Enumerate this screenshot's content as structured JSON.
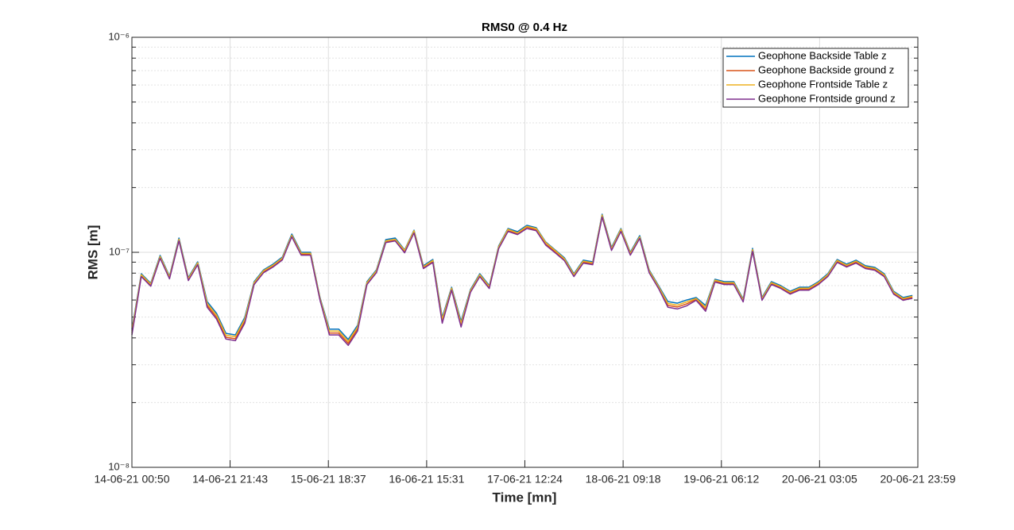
{
  "chart_data": {
    "type": "line",
    "title": "RMS0 @ 0.4 Hz",
    "xlabel": "Time [mn]",
    "ylabel": "RMS [m]",
    "x": [
      "14-06-21 00:50",
      "14-06-21 02:50",
      "14-06-21 04:50",
      "14-06-21 06:50",
      "14-06-21 08:50",
      "14-06-21 10:50",
      "14-06-21 12:50",
      "14-06-21 14:50",
      "14-06-21 16:50",
      "14-06-21 18:50",
      "14-06-21 20:50",
      "14-06-21 22:50",
      "15-06-21 00:50",
      "15-06-21 02:50",
      "15-06-21 04:50",
      "15-06-21 06:50",
      "15-06-21 08:50",
      "15-06-21 10:50",
      "15-06-21 12:50",
      "15-06-21 14:50",
      "15-06-21 16:50",
      "15-06-21 18:50",
      "15-06-21 20:50",
      "15-06-21 22:50",
      "16-06-21 00:50",
      "16-06-21 02:50",
      "16-06-21 04:50",
      "16-06-21 06:50",
      "16-06-21 08:50",
      "16-06-21 10:50",
      "16-06-21 12:50",
      "16-06-21 14:50",
      "16-06-21 16:50",
      "16-06-21 18:50",
      "16-06-21 20:50",
      "16-06-21 22:50",
      "17-06-21 00:50",
      "17-06-21 02:50",
      "17-06-21 04:50",
      "17-06-21 06:50",
      "17-06-21 08:50",
      "17-06-21 10:50",
      "17-06-21 12:50",
      "17-06-21 14:50",
      "17-06-21 16:50",
      "17-06-21 18:50",
      "17-06-21 20:50",
      "17-06-21 22:50",
      "18-06-21 00:50",
      "18-06-21 02:50",
      "18-06-21 04:50",
      "18-06-21 06:50",
      "18-06-21 08:50",
      "18-06-21 10:50",
      "18-06-21 12:50",
      "18-06-21 14:50",
      "18-06-21 16:50",
      "18-06-21 18:50",
      "18-06-21 20:50",
      "18-06-21 22:50",
      "19-06-21 00:50",
      "19-06-21 02:50",
      "19-06-21 04:50",
      "19-06-21 06:50",
      "19-06-21 08:50",
      "19-06-21 10:50",
      "19-06-21 12:50",
      "19-06-21 14:50",
      "19-06-21 16:50",
      "19-06-21 18:50",
      "19-06-21 20:50",
      "19-06-21 22:50",
      "20-06-21 00:50",
      "20-06-21 02:50",
      "20-06-21 04:50",
      "20-06-21 06:50",
      "20-06-21 08:50",
      "20-06-21 10:50",
      "20-06-21 12:50",
      "20-06-21 14:50",
      "20-06-21 16:50",
      "20-06-21 18:50",
      "20-06-21 20:50",
      "20-06-21 22:50"
    ],
    "series": [
      {
        "name": "Geophone Backside Table z",
        "color": "#0072BD",
        "values": [
          4.39e-08,
          7.95e-08,
          7.18e-08,
          9.67e-08,
          7.75e-08,
          1.165e-07,
          7.62e-08,
          9.03e-08,
          5.9e-08,
          5.2e-08,
          4.2e-08,
          4.13e-08,
          4.98e-08,
          7.3e-08,
          8.29e-08,
          8.8e-08,
          9.5e-08,
          1.216e-07,
          1e-07,
          1e-07,
          6.16e-08,
          4.39e-08,
          4.39e-08,
          3.93e-08,
          4.58e-08,
          7.3e-08,
          8.29e-08,
          1.146e-07,
          1.165e-07,
          1.026e-07,
          1.268e-07,
          8.66e-08,
          9.26e-08,
          4.98e-08,
          6.88e-08,
          4.78e-08,
          6.71e-08,
          7.95e-08,
          7e-08,
          1.07e-07,
          1.29e-07,
          1.247e-07,
          1.335e-07,
          1.301e-07,
          1.117e-07,
          1.026e-07,
          9.42e-08,
          7.95e-08,
          9.19e-08,
          9.03e-08,
          1.503e-07,
          1.052e-07,
          1.29e-07,
          1e-07,
          1.195e-07,
          8.29e-08,
          7e-08,
          5.9e-08,
          5.8e-08,
          6e-08,
          6.16e-08,
          5.66e-08,
          7.49e-08,
          7.3e-08,
          7.3e-08,
          6.06e-08,
          1.043e-07,
          6.16e-08,
          7.3e-08,
          7e-08,
          6.59e-08,
          6.88e-08,
          6.88e-08,
          7.3e-08,
          7.95e-08,
          9.26e-08,
          8.8e-08,
          9.19e-08,
          8.66e-08,
          8.51e-08,
          7.95e-08,
          6.59e-08,
          6.16e-08,
          6.3e-08
        ]
      },
      {
        "name": "Geophone Backside ground z",
        "color": "#D95319",
        "values": [
          4.21e-08,
          7.79e-08,
          7.04e-08,
          9.48e-08,
          7.6e-08,
          1.14e-07,
          7.47e-08,
          8.85e-08,
          5.66e-08,
          4.99e-08,
          4.03e-08,
          3.96e-08,
          4.78e-08,
          7.15e-08,
          8.12e-08,
          8.62e-08,
          9.31e-08,
          1.19e-07,
          9.8e-08,
          9.8e-08,
          6.04e-08,
          4.21e-08,
          4.21e-08,
          3.77e-08,
          4.4e-08,
          7.15e-08,
          8.12e-08,
          1.12e-07,
          1.14e-07,
          1.01e-07,
          1.24e-07,
          8.49e-08,
          9.07e-08,
          4.78e-08,
          6.74e-08,
          4.59e-08,
          6.58e-08,
          7.79e-08,
          6.86e-08,
          1.05e-07,
          1.26e-07,
          1.22e-07,
          1.31e-07,
          1.27e-07,
          1.09e-07,
          1.01e-07,
          9.23e-08,
          7.79e-08,
          9.01e-08,
          8.85e-08,
          1.47e-07,
          1.03e-07,
          1.26e-07,
          9.8e-08,
          1.17e-07,
          8.12e-08,
          6.86e-08,
          5.66e-08,
          5.57e-08,
          5.76e-08,
          6.04e-08,
          5.43e-08,
          7.34e-08,
          7.15e-08,
          7.15e-08,
          5.94e-08,
          1.02e-07,
          6.04e-08,
          7.15e-08,
          6.86e-08,
          6.46e-08,
          6.74e-08,
          6.74e-08,
          7.15e-08,
          7.79e-08,
          9.07e-08,
          8.62e-08,
          9.01e-08,
          8.49e-08,
          8.34e-08,
          7.79e-08,
          6.46e-08,
          6.04e-08,
          6.17e-08
        ]
      },
      {
        "name": "Geophone Frontside Table z",
        "color": "#EDB120",
        "values": [
          4.3e-08,
          7.87e-08,
          7.11e-08,
          9.57e-08,
          7.67e-08,
          1.15e-07,
          7.54e-08,
          8.94e-08,
          5.78e-08,
          5.1e-08,
          4.12e-08,
          4.05e-08,
          4.88e-08,
          7.23e-08,
          8.21e-08,
          8.71e-08,
          9.41e-08,
          1.2e-07,
          9.9e-08,
          9.9e-08,
          6.1e-08,
          4.3e-08,
          4.3e-08,
          3.85e-08,
          4.49e-08,
          7.23e-08,
          8.21e-08,
          1.13e-07,
          1.15e-07,
          1.02e-07,
          1.26e-07,
          8.57e-08,
          9.17e-08,
          4.88e-08,
          6.81e-08,
          4.68e-08,
          6.64e-08,
          7.87e-08,
          6.93e-08,
          1.06e-07,
          1.28e-07,
          1.23e-07,
          1.32e-07,
          1.29e-07,
          1.11e-07,
          1.02e-07,
          9.33e-08,
          7.87e-08,
          9.1e-08,
          8.94e-08,
          1.49e-07,
          1.04e-07,
          1.28e-07,
          9.9e-08,
          1.18e-07,
          8.21e-08,
          6.93e-08,
          5.78e-08,
          5.68e-08,
          5.88e-08,
          6.1e-08,
          5.55e-08,
          7.42e-08,
          7.23e-08,
          7.23e-08,
          6e-08,
          1.03e-07,
          6.1e-08,
          7.23e-08,
          6.93e-08,
          6.52e-08,
          6.81e-08,
          6.81e-08,
          7.23e-08,
          7.87e-08,
          9.17e-08,
          8.71e-08,
          9.1e-08,
          8.57e-08,
          8.42e-08,
          7.87e-08,
          6.52e-08,
          6.1e-08,
          6.24e-08
        ]
      },
      {
        "name": "Geophone Frontside ground z",
        "color": "#7E2F8E",
        "values": [
          4.13e-08,
          7.71e-08,
          6.96e-08,
          9.38e-08,
          7.52e-08,
          1.13e-07,
          7.39e-08,
          8.76e-08,
          5.55e-08,
          4.89e-08,
          3.95e-08,
          3.88e-08,
          4.68e-08,
          7.08e-08,
          8.04e-08,
          8.54e-08,
          9.22e-08,
          1.18e-07,
          9.7e-08,
          9.7e-08,
          5.98e-08,
          4.13e-08,
          4.13e-08,
          3.69e-08,
          4.31e-08,
          7.08e-08,
          8.04e-08,
          1.11e-07,
          1.13e-07,
          9.95e-08,
          1.23e-07,
          8.4e-08,
          8.98e-08,
          4.68e-08,
          6.67e-08,
          4.49e-08,
          6.51e-08,
          7.71e-08,
          6.79e-08,
          1.04e-07,
          1.25e-07,
          1.21e-07,
          1.29e-07,
          1.26e-07,
          1.08e-07,
          9.95e-08,
          9.14e-08,
          7.71e-08,
          8.91e-08,
          8.76e-08,
          1.46e-07,
          1.02e-07,
          1.25e-07,
          9.7e-08,
          1.16e-07,
          8.04e-08,
          6.79e-08,
          5.55e-08,
          5.45e-08,
          5.64e-08,
          5.98e-08,
          5.32e-08,
          7.27e-08,
          7.08e-08,
          7.08e-08,
          5.88e-08,
          1.01e-07,
          5.98e-08,
          7.08e-08,
          6.79e-08,
          6.39e-08,
          6.67e-08,
          6.67e-08,
          7.08e-08,
          7.71e-08,
          8.98e-08,
          8.54e-08,
          8.91e-08,
          8.4e-08,
          8.25e-08,
          7.71e-08,
          6.39e-08,
          5.98e-08,
          6.11e-08
        ]
      }
    ],
    "xlim": [
      "14-06-21 00:50",
      "20-06-21 23:59"
    ],
    "xticks": [
      "14-06-21 00:50",
      "14-06-21 21:43",
      "15-06-21 18:37",
      "16-06-21 15:31",
      "17-06-21 12:24",
      "18-06-21 09:18",
      "19-06-21 06:12",
      "20-06-21 03:05",
      "20-06-21 23:59"
    ],
    "ylim": [
      1e-08,
      1e-06
    ],
    "log_y": true,
    "yticks": [
      {
        "value": 1e-08,
        "label": "10⁻⁸"
      },
      {
        "value": 1e-07,
        "label": "10⁻⁷"
      },
      {
        "value": 1e-06,
        "label": "10⁻⁶"
      }
    ],
    "yminorticks": [
      2e-08,
      3e-08,
      4e-08,
      5e-08,
      6e-08,
      7e-08,
      8e-08,
      9e-08,
      2e-07,
      3e-07,
      4e-07,
      5e-07,
      6e-07,
      7e-07,
      8e-07,
      9e-07
    ],
    "grid": true,
    "legend": "upper right"
  }
}
